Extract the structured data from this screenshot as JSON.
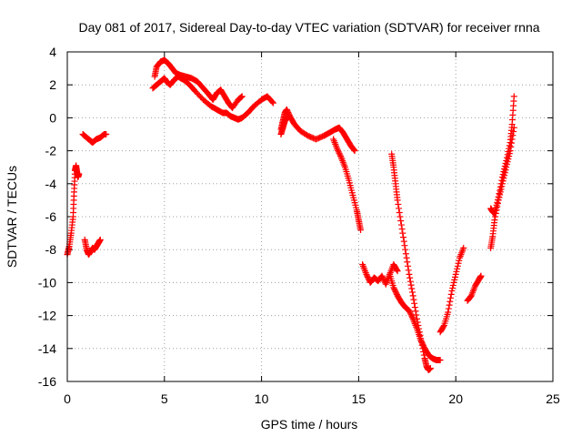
{
  "chart_data": {
    "type": "scatter",
    "title": "Day 081 of 2017, Sidereal Day-to-day VTEC variation (SDTVAR) for receiver rnna",
    "xlabel": "GPS time / hours",
    "ylabel": "SDTVAR / TECUs",
    "xlim": [
      0,
      25
    ],
    "ylim": [
      -16,
      4
    ],
    "x_ticks": [
      0,
      5,
      10,
      15,
      20,
      25
    ],
    "y_ticks": [
      -16,
      -14,
      -12,
      -10,
      -8,
      -6,
      -4,
      -2,
      0,
      2,
      4
    ],
    "grid": true,
    "legend": "none",
    "marker": "plus",
    "color": "#ff0000",
    "segments": [
      {
        "x": [
          0.0,
          0.1,
          0.2,
          0.3,
          0.35,
          0.4,
          0.45,
          0.5,
          0.55,
          0.6
        ],
        "y": [
          -8.3,
          -7.8,
          -7.0,
          -6.0,
          -4.5,
          -3.2,
          -2.9,
          -3.3,
          -3.6,
          -3.4
        ]
      },
      {
        "x": [
          0.9,
          1.0,
          1.1,
          1.2,
          1.3,
          1.4,
          1.5,
          1.6,
          1.7
        ],
        "y": [
          -7.4,
          -8.0,
          -8.3,
          -8.1,
          -7.9,
          -8.0,
          -7.8,
          -7.6,
          -7.4
        ]
      },
      {
        "x": [
          0.8,
          1.0,
          1.2,
          1.3,
          1.5,
          1.7,
          1.9,
          2.0
        ],
        "y": [
          -1.0,
          -1.2,
          -1.4,
          -1.5,
          -1.3,
          -1.2,
          -1.0,
          -1.0
        ]
      },
      {
        "x": [
          4.4,
          4.6,
          4.8,
          5.0,
          5.1,
          5.3,
          5.5,
          5.7,
          6.0,
          6.3,
          6.6,
          7.0,
          7.4,
          7.7,
          8.0,
          8.2,
          8.4,
          8.6,
          8.8,
          9.0,
          9.3,
          9.6,
          10.0,
          10.3,
          10.6
        ],
        "y": [
          1.8,
          2.0,
          2.2,
          2.4,
          2.2,
          2.0,
          2.3,
          2.5,
          2.3,
          2.0,
          1.6,
          1.1,
          0.7,
          0.5,
          0.3,
          0.3,
          0.1,
          0.0,
          -0.1,
          0.0,
          0.3,
          0.7,
          1.1,
          1.3,
          0.9
        ]
      },
      {
        "x": [
          4.5,
          4.6,
          4.8,
          5.0,
          5.2,
          5.4,
          5.6,
          5.8,
          6.1,
          6.4,
          6.7,
          7.0,
          7.3,
          7.5,
          7.7,
          7.9,
          8.1,
          8.3,
          8.5,
          8.8,
          9.0
        ],
        "y": [
          2.5,
          3.1,
          3.4,
          3.5,
          3.3,
          3.0,
          2.7,
          2.6,
          2.5,
          2.4,
          2.2,
          1.8,
          1.4,
          1.1,
          1.5,
          1.7,
          1.3,
          0.9,
          0.6,
          1.1,
          1.3
        ]
      },
      {
        "x": [
          11.0,
          11.1,
          11.2,
          11.3,
          11.5,
          11.7,
          12.0,
          12.4,
          12.8,
          13.2,
          13.5,
          13.8,
          14.0,
          14.2,
          14.4,
          14.6,
          14.8
        ],
        "y": [
          -0.7,
          -0.2,
          0.3,
          0.5,
          0.0,
          -0.4,
          -0.8,
          -1.1,
          -1.3,
          -1.1,
          -0.9,
          -0.7,
          -0.6,
          -0.9,
          -1.3,
          -1.7,
          -2.0
        ]
      },
      {
        "x": [
          11.0,
          11.1,
          11.2,
          11.4
        ],
        "y": [
          -1.0,
          -0.6,
          -0.2,
          0.1
        ]
      },
      {
        "x": [
          13.7,
          13.9,
          14.1,
          14.3,
          14.5,
          14.7,
          14.9,
          15.0,
          15.1
        ],
        "y": [
          -1.3,
          -1.9,
          -2.4,
          -3.0,
          -3.8,
          -4.7,
          -5.6,
          -6.2,
          -6.8
        ]
      },
      {
        "x": [
          15.2,
          15.4,
          15.6,
          15.8,
          16.0,
          16.2,
          16.4,
          16.6,
          16.8,
          17.0
        ],
        "y": [
          -8.9,
          -9.5,
          -10.0,
          -9.7,
          -9.9,
          -9.6,
          -10.1,
          -9.5,
          -8.9,
          -9.3
        ]
      },
      {
        "x": [
          16.6,
          16.8,
          17.0,
          17.2,
          17.4,
          17.6,
          17.8,
          18.0,
          18.2,
          18.4,
          18.6,
          18.8,
          19.0,
          19.2
        ],
        "y": [
          -9.5,
          -10.3,
          -10.8,
          -11.2,
          -11.5,
          -11.7,
          -12.2,
          -12.8,
          -13.5,
          -14.0,
          -14.4,
          -14.6,
          -14.7,
          -14.7
        ]
      },
      {
        "x": [
          16.7,
          16.8,
          16.9,
          17.0,
          17.2,
          17.4,
          17.6,
          17.8,
          18.0,
          18.2,
          18.4,
          18.5,
          18.6,
          18.7
        ],
        "y": [
          -2.2,
          -3.0,
          -4.0,
          -5.0,
          -6.5,
          -8.0,
          -9.5,
          -10.8,
          -12.2,
          -13.4,
          -14.6,
          -15.1,
          -15.3,
          -15.2
        ]
      },
      {
        "x": [
          19.2,
          19.4,
          19.6,
          19.8,
          20.0,
          20.2,
          20.4
        ],
        "y": [
          -13.0,
          -12.6,
          -11.8,
          -10.5,
          -9.5,
          -8.5,
          -7.9
        ]
      },
      {
        "x": [
          20.6,
          20.8,
          21.0,
          21.2,
          21.3
        ],
        "y": [
          -11.1,
          -10.8,
          -10.2,
          -9.8,
          -9.6
        ]
      },
      {
        "x": [
          21.8,
          21.9,
          22.0,
          22.2,
          22.4,
          22.6,
          22.8,
          22.9,
          23.0
        ],
        "y": [
          -5.5,
          -5.7,
          -5.8,
          -4.8,
          -3.6,
          -2.6,
          -1.5,
          -0.4,
          1.3
        ]
      },
      {
        "x": [
          21.8,
          21.9,
          22.0,
          22.2,
          22.4,
          22.6,
          22.8,
          23.0
        ],
        "y": [
          -7.9,
          -7.2,
          -6.2,
          -5.0,
          -4.0,
          -3.0,
          -2.0,
          -0.6
        ]
      }
    ]
  }
}
